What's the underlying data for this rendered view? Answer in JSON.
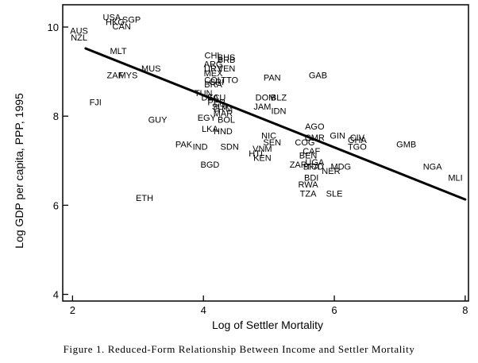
{
  "chart_data": {
    "type": "scatter",
    "title": "",
    "xlabel": "Log of Settler Mortality",
    "ylabel": "Log GDP per capita, PPP, 1995",
    "xlim": [
      1.85,
      8.05
    ],
    "ylim": [
      3.85,
      10.5
    ],
    "xticks": [
      2,
      4,
      6,
      8
    ],
    "yticks": [
      4,
      6,
      8,
      10
    ],
    "grid": false,
    "fit_line": {
      "x": [
        2.2,
        8.0
      ],
      "y": [
        9.52,
        6.13
      ]
    },
    "points": [
      {
        "label": "USA",
        "x": 2.6,
        "y": 10.2
      },
      {
        "label": "SGP",
        "x": 2.9,
        "y": 10.15
      },
      {
        "label": "HKG",
        "x": 2.65,
        "y": 10.1
      },
      {
        "label": "CAN",
        "x": 2.75,
        "y": 10.0
      },
      {
        "label": "AUS",
        "x": 2.1,
        "y": 9.9
      },
      {
        "label": "NZL",
        "x": 2.1,
        "y": 9.75
      },
      {
        "label": "MLT",
        "x": 2.7,
        "y": 9.45
      },
      {
        "label": "MUS",
        "x": 3.2,
        "y": 9.05
      },
      {
        "label": "ZAF",
        "x": 2.65,
        "y": 8.9
      },
      {
        "label": "MYS",
        "x": 2.85,
        "y": 8.9
      },
      {
        "label": "FJI",
        "x": 2.35,
        "y": 8.3
      },
      {
        "label": "GUY",
        "x": 3.3,
        "y": 7.9
      },
      {
        "label": "ETH",
        "x": 3.1,
        "y": 6.15
      },
      {
        "label": "CHL",
        "x": 4.15,
        "y": 9.35
      },
      {
        "label": "BHS",
        "x": 4.35,
        "y": 9.3
      },
      {
        "label": "BRB",
        "x": 4.35,
        "y": 9.25
      },
      {
        "label": "ARG",
        "x": 4.15,
        "y": 9.15
      },
      {
        "label": "URY",
        "x": 4.15,
        "y": 9.05
      },
      {
        "label": "VEN",
        "x": 4.35,
        "y": 9.05
      },
      {
        "label": "MEX",
        "x": 4.15,
        "y": 8.95
      },
      {
        "label": "COL",
        "x": 4.15,
        "y": 8.8
      },
      {
        "label": "TTO",
        "x": 4.4,
        "y": 8.8
      },
      {
        "label": "CRI",
        "x": 4.2,
        "y": 8.75
      },
      {
        "label": "BRA",
        "x": 4.15,
        "y": 8.7
      },
      {
        "label": "TUN",
        "x": 4.0,
        "y": 8.5
      },
      {
        "label": "DZA",
        "x": 4.1,
        "y": 8.4
      },
      {
        "label": "ECU",
        "x": 4.2,
        "y": 8.4
      },
      {
        "label": "PER",
        "x": 4.2,
        "y": 8.3
      },
      {
        "label": "SLV",
        "x": 4.25,
        "y": 8.2
      },
      {
        "label": "GTM",
        "x": 4.3,
        "y": 8.15
      },
      {
        "label": "MAR",
        "x": 4.3,
        "y": 8.05
      },
      {
        "label": "EGY",
        "x": 4.05,
        "y": 7.95
      },
      {
        "label": "BOL",
        "x": 4.35,
        "y": 7.9
      },
      {
        "label": "LKA",
        "x": 4.1,
        "y": 7.7
      },
      {
        "label": "HND",
        "x": 4.3,
        "y": 7.65
      },
      {
        "label": "PAK",
        "x": 3.7,
        "y": 7.35
      },
      {
        "label": "IND",
        "x": 3.95,
        "y": 7.3
      },
      {
        "label": "SDN",
        "x": 4.4,
        "y": 7.3
      },
      {
        "label": "BGD",
        "x": 4.1,
        "y": 6.9
      },
      {
        "label": "PAN",
        "x": 5.05,
        "y": 8.85
      },
      {
        "label": "GAB",
        "x": 5.75,
        "y": 8.9
      },
      {
        "label": "DOM",
        "x": 4.95,
        "y": 8.4
      },
      {
        "label": "BLZ",
        "x": 5.15,
        "y": 8.4
      },
      {
        "label": "JAM",
        "x": 4.9,
        "y": 8.2
      },
      {
        "label": "IDN",
        "x": 5.15,
        "y": 8.1
      },
      {
        "label": "AGO",
        "x": 5.7,
        "y": 7.75
      },
      {
        "label": "NIC",
        "x": 5.0,
        "y": 7.55
      },
      {
        "label": "SEN",
        "x": 5.05,
        "y": 7.4
      },
      {
        "label": "CMR",
        "x": 5.7,
        "y": 7.5
      },
      {
        "label": "COG",
        "x": 5.55,
        "y": 7.4
      },
      {
        "label": "VNM",
        "x": 4.9,
        "y": 7.25
      },
      {
        "label": "HTI",
        "x": 4.8,
        "y": 7.15
      },
      {
        "label": "KEN",
        "x": 4.9,
        "y": 7.05
      },
      {
        "label": "CAF",
        "x": 5.65,
        "y": 7.2
      },
      {
        "label": "BEN",
        "x": 5.6,
        "y": 7.1
      },
      {
        "label": "UGA",
        "x": 5.7,
        "y": 6.95
      },
      {
        "label": "ZAR",
        "x": 5.45,
        "y": 6.9
      },
      {
        "label": "TCD",
        "x": 5.7,
        "y": 6.85
      },
      {
        "label": "BFA",
        "x": 5.65,
        "y": 6.85
      },
      {
        "label": "NER",
        "x": 5.95,
        "y": 6.75
      },
      {
        "label": "BDI",
        "x": 5.65,
        "y": 6.6
      },
      {
        "label": "RWA",
        "x": 5.6,
        "y": 6.45
      },
      {
        "label": "TZA",
        "x": 5.6,
        "y": 6.25
      },
      {
        "label": "SLE",
        "x": 6.0,
        "y": 6.25
      },
      {
        "label": "GIN",
        "x": 6.05,
        "y": 7.55
      },
      {
        "label": "CIV",
        "x": 6.35,
        "y": 7.5
      },
      {
        "label": "GHA",
        "x": 6.35,
        "y": 7.45
      },
      {
        "label": "TGO",
        "x": 6.35,
        "y": 7.3
      },
      {
        "label": "MDG",
        "x": 6.1,
        "y": 6.85
      },
      {
        "label": "GMB",
        "x": 7.1,
        "y": 7.35
      },
      {
        "label": "NGA",
        "x": 7.5,
        "y": 6.85
      },
      {
        "label": "MLI",
        "x": 7.85,
        "y": 6.6
      }
    ]
  },
  "caption": "Figure 1. Reduced-Form Relationship Between Income and Settler Mortality"
}
